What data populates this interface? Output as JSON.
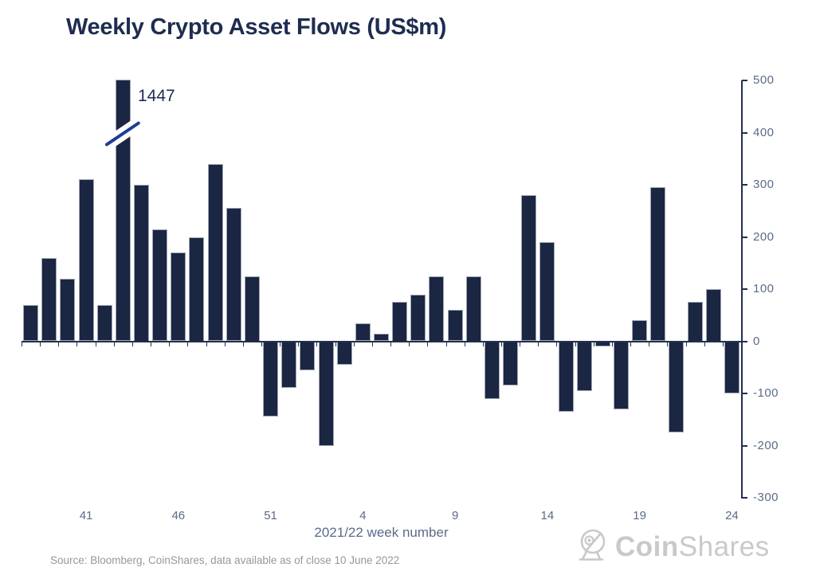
{
  "title": "Weekly Crypto Asset Flows (US$m)",
  "annotation": {
    "label": "1447"
  },
  "source_note": "Source: Bloomberg, CoinShares, data available as of close 10 June 2022",
  "logo": {
    "icon": "satellite-dish-icon",
    "brand_bold": "Coin",
    "brand_light": "Shares",
    "color": "#c9c9c9"
  },
  "colors": {
    "bar": "#1a2642",
    "axis": "#23304e",
    "tick_label": "#5c6b87",
    "title": "#1e2c50",
    "source": "#94989f",
    "break_line": "#1e3e92",
    "background": "#ffffff"
  },
  "chart_data": {
    "type": "bar",
    "title": "Weekly Crypto Asset Flows (US$m)",
    "xlabel": "2021/22 week number",
    "ylabel": "",
    "ylim": [
      -300,
      500
    ],
    "y_ticks": [
      500,
      400,
      300,
      200,
      100,
      0,
      -100,
      -200,
      -300
    ],
    "grid": false,
    "legend": "none",
    "x_weeks": [
      38,
      39,
      40,
      41,
      42,
      43,
      44,
      45,
      46,
      47,
      48,
      49,
      50,
      51,
      52,
      1,
      2,
      3,
      4,
      5,
      6,
      7,
      8,
      9,
      10,
      11,
      12,
      13,
      14,
      15,
      16,
      17,
      18,
      19,
      20,
      21,
      22,
      23,
      24
    ],
    "values": [
      70,
      160,
      120,
      310,
      70,
      1447,
      300,
      215,
      170,
      200,
      340,
      255,
      125,
      -145,
      -90,
      -55,
      -200,
      -45,
      35,
      15,
      75,
      90,
      125,
      60,
      125,
      -110,
      -85,
      280,
      190,
      -135,
      -95,
      -10,
      -130,
      40,
      295,
      -175,
      75,
      100,
      -100
    ],
    "x_tick_labels": [
      "41",
      "46",
      "51",
      "4",
      "9",
      "14",
      "19",
      "24"
    ],
    "x_tick_indices": [
      3,
      8,
      13,
      18,
      23,
      28,
      33,
      38
    ],
    "truncated_bar": {
      "index": 5,
      "actual_value": 1447,
      "display_clamp": 502,
      "note": "axis-break marks on bar"
    }
  }
}
